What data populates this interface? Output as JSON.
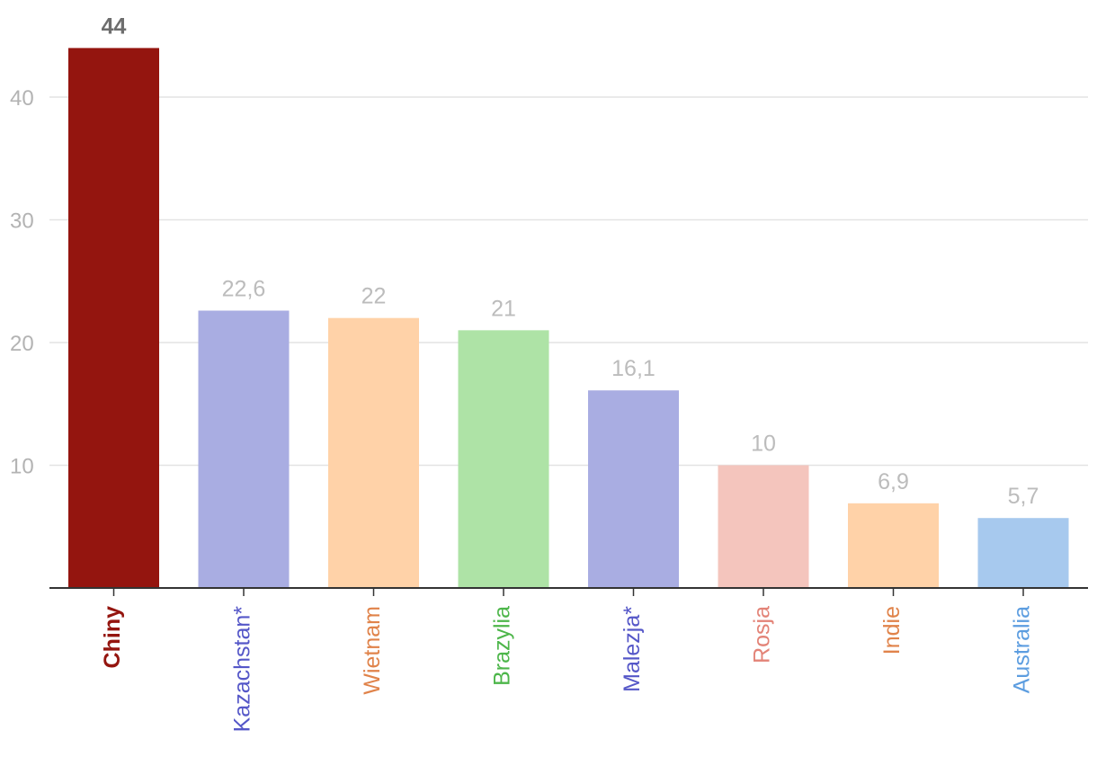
{
  "chart_data": {
    "type": "bar",
    "categories": [
      "Chiny",
      "Kazachstan*",
      "Wietnam",
      "Brazylia",
      "Malezja*",
      "Rosja",
      "Indie",
      "Australia"
    ],
    "values": [
      44,
      22.6,
      22,
      21,
      16.1,
      10,
      6.9,
      5.7
    ],
    "value_labels": [
      "44",
      "22,6",
      "22",
      "21",
      "16,1",
      "10",
      "6,9",
      "5,7"
    ],
    "bar_colors": [
      "#94150f",
      "#a9ade2",
      "#ffd2a8",
      "#aee3a6",
      "#a9ade2",
      "#f4c5bd",
      "#ffd2a8",
      "#a7c9ee"
    ],
    "label_colors": [
      "#94150f",
      "#5557c8",
      "#e0834a",
      "#4db64a",
      "#5557c8",
      "#e38377",
      "#e0834a",
      "#5c9de0"
    ],
    "highlight_index": 0,
    "yticks": [
      10,
      20,
      30,
      40
    ],
    "ylim": [
      0,
      44
    ],
    "grid": true,
    "title": "",
    "xlabel": "",
    "ylabel": ""
  }
}
